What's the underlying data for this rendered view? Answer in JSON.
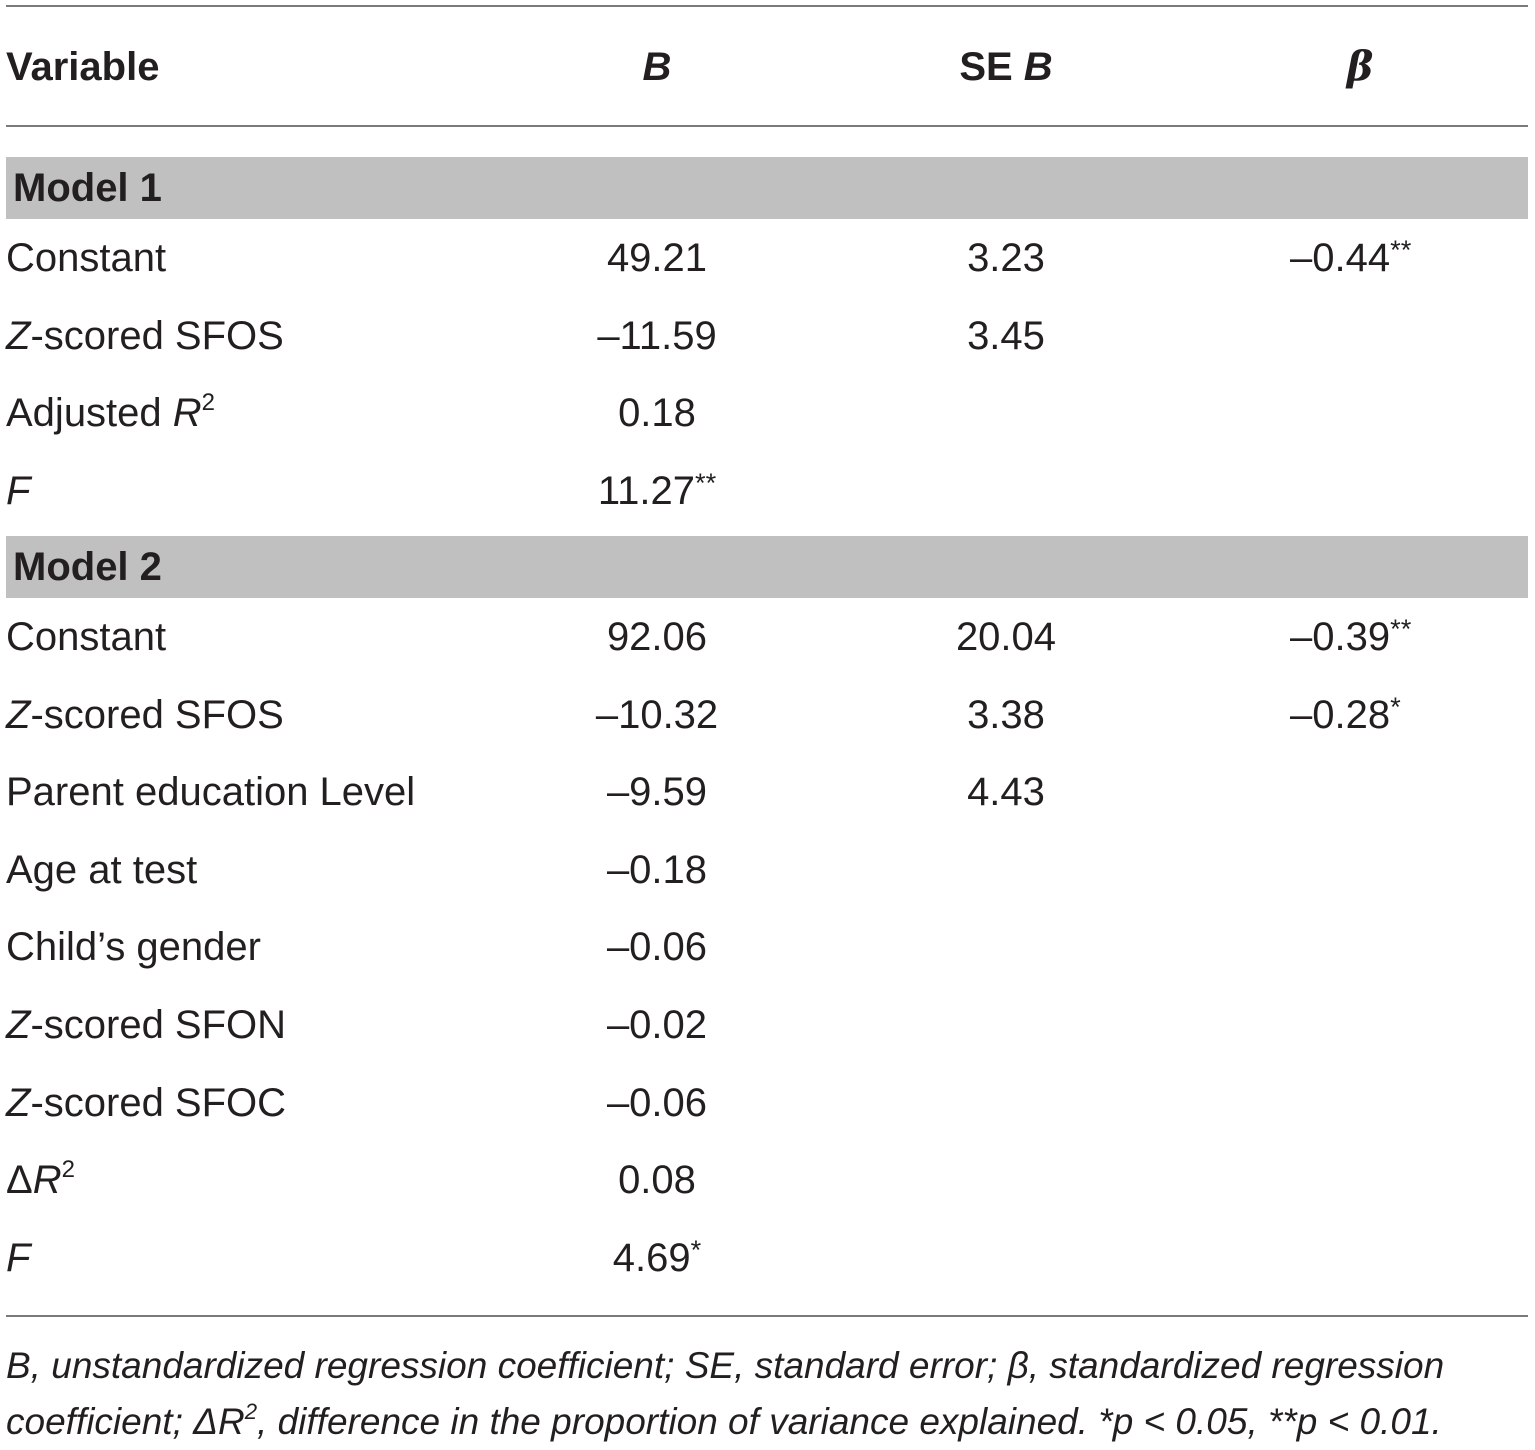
{
  "header": {
    "variable": "Variable",
    "b": "B",
    "se_prefix": "SE",
    "se_b": "B",
    "beta": "β"
  },
  "model1": {
    "title": "Model 1",
    "rows": [
      {
        "var_pre": "",
        "var_it": "",
        "var_post": "Constant",
        "b": "49.21",
        "se": "3.23",
        "beta": "–0.44",
        "beta_star": "**"
      },
      {
        "var_pre": "",
        "var_it": "Z",
        "var_post": "-scored SFOS",
        "b": "–11.59",
        "se": "3.45",
        "beta": "",
        "beta_star": ""
      },
      {
        "var_pre": "Adjusted ",
        "var_it": "R",
        "var_sup": "2",
        "var_post": "",
        "b": "0.18",
        "se": "",
        "beta": "",
        "beta_star": ""
      },
      {
        "var_pre": "",
        "var_it": "F",
        "var_post": "",
        "b": "11.27",
        "b_star": "**",
        "se": "",
        "beta": "",
        "beta_star": ""
      }
    ]
  },
  "model2": {
    "title": "Model 2",
    "rows": [
      {
        "var_pre": "",
        "var_it": "",
        "var_post": "Constant",
        "b": "92.06",
        "se": "20.04",
        "beta": "–0.39",
        "beta_star": "**"
      },
      {
        "var_pre": "",
        "var_it": "Z",
        "var_post": "-scored SFOS",
        "b": "–10.32",
        "se": "3.38",
        "beta": "–0.28",
        "beta_star": "*"
      },
      {
        "var_pre": "",
        "var_it": "",
        "var_post": "Parent education Level",
        "b": "–9.59",
        "se": "4.43",
        "beta": "",
        "beta_star": ""
      },
      {
        "var_pre": "",
        "var_it": "",
        "var_post": "Age at test",
        "b": "–0.18",
        "se": "",
        "beta": "",
        "beta_star": ""
      },
      {
        "var_pre": "",
        "var_it": "",
        "var_post": "Child’s gender",
        "b": "–0.06",
        "se": "",
        "beta": "",
        "beta_star": ""
      },
      {
        "var_pre": "",
        "var_it": "Z",
        "var_post": "-scored SFON",
        "b": "–0.02",
        "se": "",
        "beta": "",
        "beta_star": ""
      },
      {
        "var_pre": "",
        "var_it": "Z",
        "var_post": "-scored SFOC",
        "b": "–0.06",
        "se": "",
        "beta": "",
        "beta_star": ""
      },
      {
        "var_pre": "Δ",
        "var_it": "R",
        "var_sup": "2",
        "var_post": "",
        "b": "0.08",
        "se": "",
        "beta": "",
        "beta_star": ""
      },
      {
        "var_pre": "",
        "var_it": "F",
        "var_post": "",
        "b": "4.69",
        "b_star": "*",
        "se": "",
        "beta": "",
        "beta_star": ""
      }
    ]
  },
  "footnote": {
    "line1": "B, unstandardized regression coefficient; SE, standard error; β, standardized regression",
    "line2_pre": "coefficient; ΔR",
    "line2_sup": "2",
    "line2_post": ", difference in the proportion of variance explained. *p < 0.05, **p < 0.01."
  }
}
